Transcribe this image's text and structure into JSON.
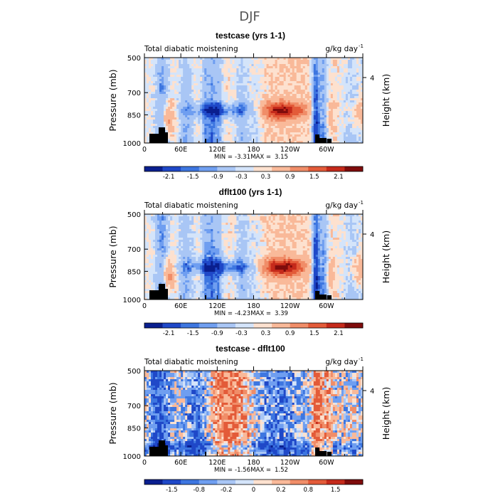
{
  "figure_title": "DJF",
  "chart_data": [
    {
      "type": "heatmap",
      "title": "testcase (yrs 1-1)",
      "left_string": "Total diabatic moistening",
      "right_string": "g/kg day",
      "right_string_exp": "-1",
      "ylabel": "Pressure (mb)",
      "ylabel_right": "Height (km)",
      "y_ticks": [
        "500",
        "700",
        "850",
        "1000"
      ],
      "y_right_ticks": [
        "4"
      ],
      "x_ticks": [
        "0",
        "60E",
        "120E",
        "180",
        "120W",
        "60W"
      ],
      "ylim": [
        1000,
        500
      ],
      "xlim": [
        0,
        360
      ],
      "stats": {
        "min_label": "MIN =",
        "min": "-3.31",
        "max_label": "MAX =",
        "max": "3.15"
      },
      "colorbar_labels": [
        "-2.1",
        "-1.5",
        "-0.9",
        "-0.3",
        "0.3",
        "0.9",
        "1.5",
        "2.1"
      ]
    },
    {
      "type": "heatmap",
      "title": "dflt100 (yrs 1-1)",
      "left_string": "Total diabatic moistening",
      "right_string": "g/kg day",
      "right_string_exp": "-1",
      "ylabel": "Pressure (mb)",
      "ylabel_right": "Height (km)",
      "y_ticks": [
        "500",
        "700",
        "850",
        "1000"
      ],
      "y_right_ticks": [
        "4"
      ],
      "x_ticks": [
        "0",
        "60E",
        "120E",
        "180",
        "120W",
        "60W"
      ],
      "ylim": [
        1000,
        500
      ],
      "xlim": [
        0,
        360
      ],
      "stats": {
        "min_label": "MIN =",
        "min": "-4.23",
        "max_label": "MAX =",
        "max": "3.39"
      },
      "colorbar_labels": [
        "-2.1",
        "-1.5",
        "-0.9",
        "-0.3",
        "0.3",
        "0.9",
        "1.5",
        "2.1"
      ]
    },
    {
      "type": "heatmap",
      "title": "testcase - dflt100",
      "left_string": "Total diabatic moistening",
      "right_string": "g/kg day",
      "right_string_exp": "-1",
      "ylabel": "Pressure (mb)",
      "ylabel_right": "Height (km)",
      "y_ticks": [
        "500",
        "700",
        "850",
        "1000"
      ],
      "y_right_ticks": [
        "4"
      ],
      "x_ticks": [
        "0",
        "60E",
        "120E",
        "180",
        "120W",
        "60W"
      ],
      "ylim": [
        1000,
        500
      ],
      "xlim": [
        0,
        360
      ],
      "stats": {
        "min_label": "MIN =",
        "min": "-1.56",
        "max_label": "MAX =",
        "max": "1.52"
      },
      "colorbar_labels": [
        "-1.5",
        "-0.8",
        "-0.2",
        "0",
        "0.2",
        "0.8",
        "1.5"
      ]
    }
  ],
  "palette_12": [
    "#0a1f8f",
    "#1f48c8",
    "#3d76e0",
    "#6f9ef0",
    "#a9c6f5",
    "#d4e4fa",
    "#fde1cf",
    "#f9b999",
    "#f08d68",
    "#e35b39",
    "#c52a1b",
    "#7f0c0c"
  ]
}
